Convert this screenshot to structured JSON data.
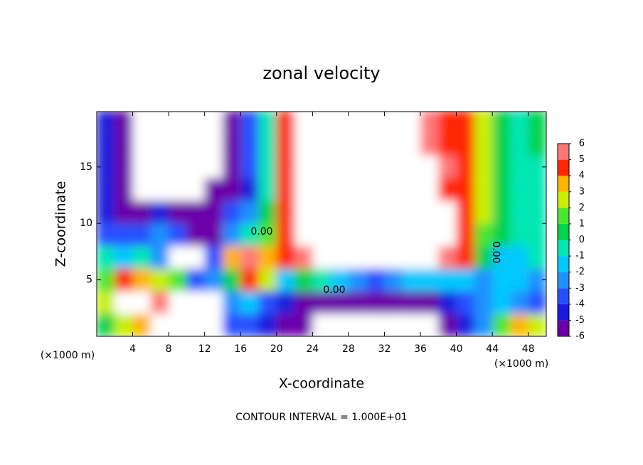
{
  "chart_data": {
    "type": "heatmap",
    "title": "zonal velocity",
    "xlabel": "X-coordinate",
    "ylabel": "Z-coordinate",
    "axis_unit": "(×1000 m)",
    "annotation": "CONTOUR INTERVAL = 1.000E+01",
    "x": [
      1,
      3,
      5,
      7,
      9,
      11,
      13,
      15,
      17,
      19,
      21,
      23,
      25,
      27,
      29,
      31,
      33,
      35,
      37,
      39,
      41,
      43,
      45,
      47,
      49
    ],
    "y": [
      1,
      3,
      5,
      7,
      9,
      11,
      13,
      15,
      17,
      19
    ],
    "values": [
      [
        1,
        3,
        4,
        7,
        7,
        7,
        7,
        -3,
        -3,
        -4,
        -5,
        -6,
        -7,
        -7,
        -7,
        -7,
        -7,
        -7,
        -7,
        -6,
        -4,
        -2,
        2,
        4,
        3
      ],
      [
        3,
        7,
        7,
        6,
        7,
        7,
        7,
        -2,
        -1,
        -3,
        -4,
        -5,
        -6,
        -6,
        -6,
        -6,
        -6,
        -6,
        -5,
        -4,
        -3,
        -2,
        -1,
        -2,
        -3
      ],
      [
        2,
        5,
        4,
        3,
        2,
        -3,
        -2,
        1,
        5,
        3,
        -1,
        1,
        0,
        -1,
        -2,
        -3,
        -2,
        -1,
        -1,
        -1,
        -1,
        -2,
        -1,
        -1,
        -2
      ],
      [
        0,
        -1,
        0,
        -2,
        -8,
        -7,
        -3,
        4,
        6,
        4,
        5,
        6,
        7,
        7,
        7,
        7,
        7,
        7,
        7,
        6,
        5,
        1,
        -1,
        -1,
        0
      ],
      [
        -3,
        -3,
        -3,
        -2,
        -3,
        -5,
        -5,
        -2,
        0,
        2,
        5,
        7,
        7,
        7,
        7,
        7,
        7,
        7,
        7,
        7,
        5,
        2,
        1,
        0,
        0
      ],
      [
        -4,
        -5,
        -6,
        -4,
        -5,
        -6,
        -5,
        -3,
        -2,
        1,
        5,
        7,
        7,
        7,
        7,
        7,
        7,
        7,
        7,
        7,
        5,
        3,
        1,
        0,
        0
      ],
      [
        -4,
        -5,
        -7,
        -8,
        -8,
        -8,
        -6,
        -5,
        -4,
        0,
        5,
        7,
        7,
        7,
        7,
        7,
        7,
        7,
        7,
        5,
        5,
        3,
        1,
        0,
        0
      ],
      [
        -4,
        -6,
        -8,
        -8,
        -8,
        -8,
        -8,
        -6,
        -3,
        0,
        5,
        7,
        7,
        7,
        7,
        7,
        7,
        7,
        7,
        6,
        5,
        3,
        1,
        0,
        0
      ],
      [
        -4,
        -6,
        -8,
        -8,
        -8,
        -8,
        -8,
        -5,
        -3,
        0,
        5,
        7,
        7,
        7,
        7,
        7,
        7,
        7,
        6,
        5,
        5,
        3,
        1,
        0,
        1
      ],
      [
        -4,
        -6,
        -8,
        -8,
        -8,
        -8,
        -8,
        -5,
        -3,
        0,
        5,
        7,
        7,
        7,
        7,
        7,
        7,
        7,
        6,
        5,
        5,
        3,
        1,
        0,
        1
      ]
    ],
    "xlim": [
      0,
      50
    ],
    "ylim": [
      0,
      19.9
    ],
    "xticks": [
      4,
      8,
      12,
      16,
      20,
      24,
      28,
      32,
      36,
      40,
      44,
      48
    ],
    "yticks": [
      5,
      10,
      15
    ],
    "colorbar": {
      "levels": [
        -6,
        -5,
        -4,
        -3,
        -2,
        -1,
        0,
        1,
        2,
        3,
        4,
        5,
        6
      ],
      "colors": [
        "#6a00a8",
        "#1a1adc",
        "#2850ff",
        "#1e90ff",
        "#00c8ff",
        "#00e6b4",
        "#00d24b",
        "#4be632",
        "#c8f000",
        "#ffb400",
        "#ff2800",
        "#ff7878"
      ]
    },
    "contour_labels": [
      "0.00",
      "0.00",
      "0.00"
    ]
  }
}
